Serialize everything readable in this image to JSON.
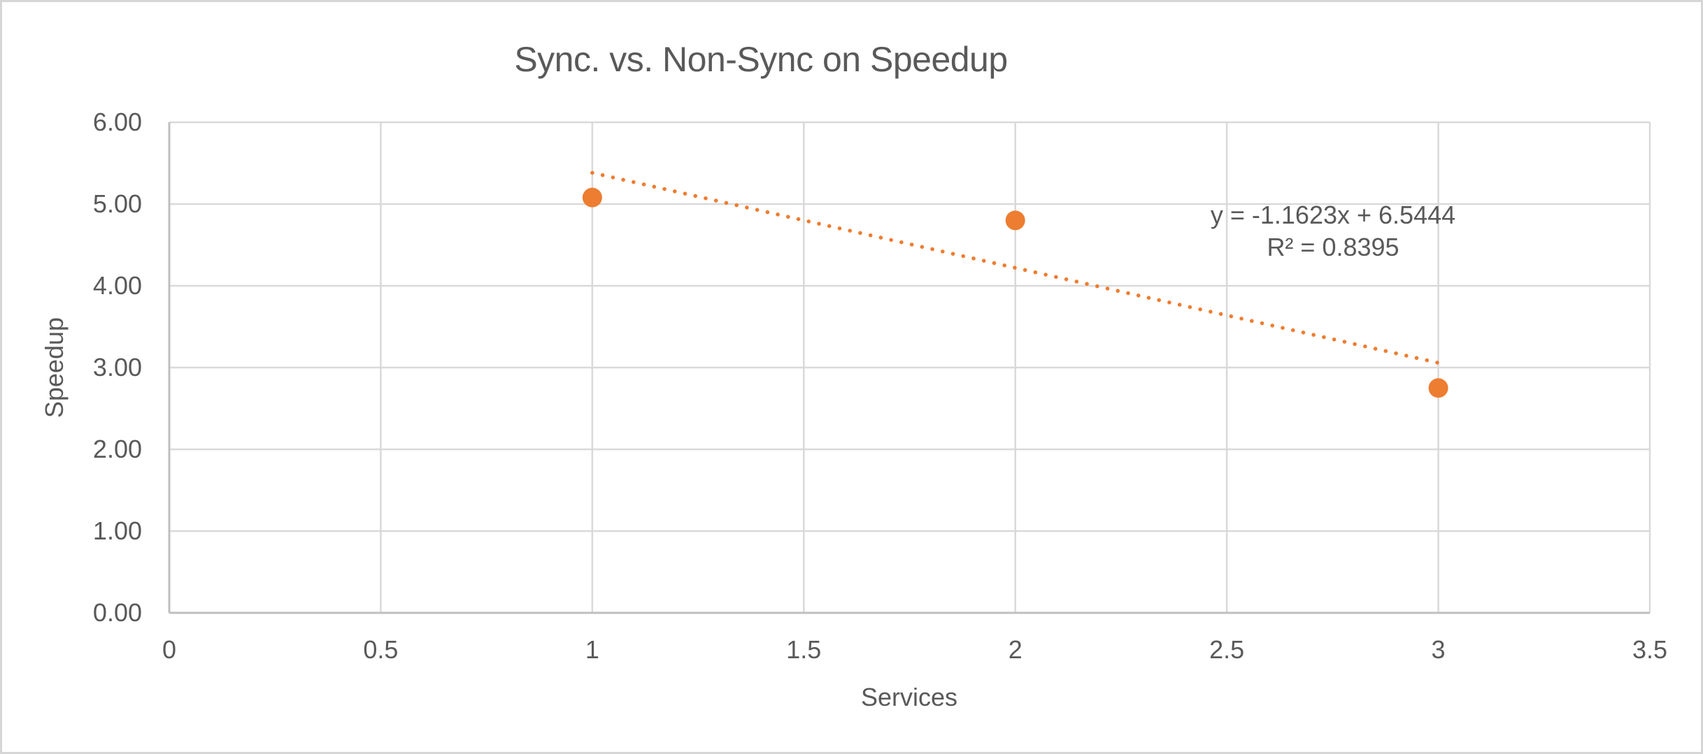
{
  "frame": {
    "background_color": "#ffffff",
    "border_color": "#d6d6d6"
  },
  "chart_data": {
    "type": "scatter",
    "title": "Sync. vs. Non-Sync on Speedup",
    "xlabel": "Services",
    "ylabel": "Speedup",
    "x": [
      1,
      2,
      3
    ],
    "y": [
      5.08,
      4.8,
      2.75
    ],
    "xlim": [
      0,
      3.5
    ],
    "ylim": [
      0,
      6
    ],
    "x_tick_labels": [
      "0",
      "0.5",
      "1",
      "1.5",
      "2",
      "2.5",
      "3",
      "3.5"
    ],
    "y_tick_labels": [
      "0.00",
      "1.00",
      "2.00",
      "3.00",
      "4.00",
      "5.00",
      "6.00"
    ],
    "grid": true,
    "legend": "none",
    "trendline": {
      "slope": -1.1623,
      "intercept": 6.5444,
      "x_start": 1,
      "x_end": 3,
      "style": "dotted",
      "equation_label": "y = -1.1623x + 6.5444",
      "r_squared_label": "R² = 0.8395"
    },
    "colors": {
      "marker": "#ED7D31",
      "trendline": "#ED7D31",
      "gridline": "#D9D9D9",
      "axis_line": "#BFBFBF",
      "text": "#595959"
    }
  }
}
